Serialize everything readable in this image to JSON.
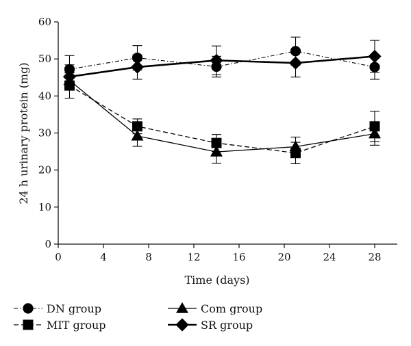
{
  "chart_data": {
    "type": "line",
    "xlabel": "Time (days)",
    "ylabel": "24 h urinary protein (mg)",
    "xlim": [
      0,
      30
    ],
    "ylim": [
      0,
      60
    ],
    "xticks": [
      0,
      4,
      8,
      12,
      16,
      20,
      24,
      28
    ],
    "yticks": [
      0,
      10,
      20,
      30,
      40,
      50,
      60
    ],
    "x": [
      1,
      7,
      14,
      21,
      28
    ],
    "grid": false,
    "legend_position": "bottom",
    "series": [
      {
        "name": "DN group",
        "marker": "circle",
        "line_style": "dash-dot",
        "values": [
          47.2,
          50.3,
          47.9,
          52.1,
          47.8
        ],
        "errors": [
          3.7,
          3.3,
          2.8,
          3.8,
          3.3
        ]
      },
      {
        "name": "MIT group",
        "marker": "square",
        "line_style": "dashed",
        "values": [
          42.8,
          31.8,
          27.3,
          24.6,
          31.8
        ],
        "errors": [
          3.4,
          2.0,
          2.3,
          2.9,
          4.1
        ]
      },
      {
        "name": "Com group",
        "marker": "triangle",
        "line_style": "solid",
        "values": [
          44.2,
          29.2,
          24.9,
          26.3,
          29.8
        ],
        "errors": [
          2.2,
          2.8,
          3.1,
          2.6,
          3.1
        ]
      },
      {
        "name": "SR group",
        "marker": "diamond",
        "line_style": "solid-bold",
        "values": [
          45.2,
          47.8,
          49.6,
          48.9,
          50.7
        ],
        "errors": [
          3.2,
          3.3,
          3.9,
          3.8,
          4.3
        ]
      }
    ]
  }
}
